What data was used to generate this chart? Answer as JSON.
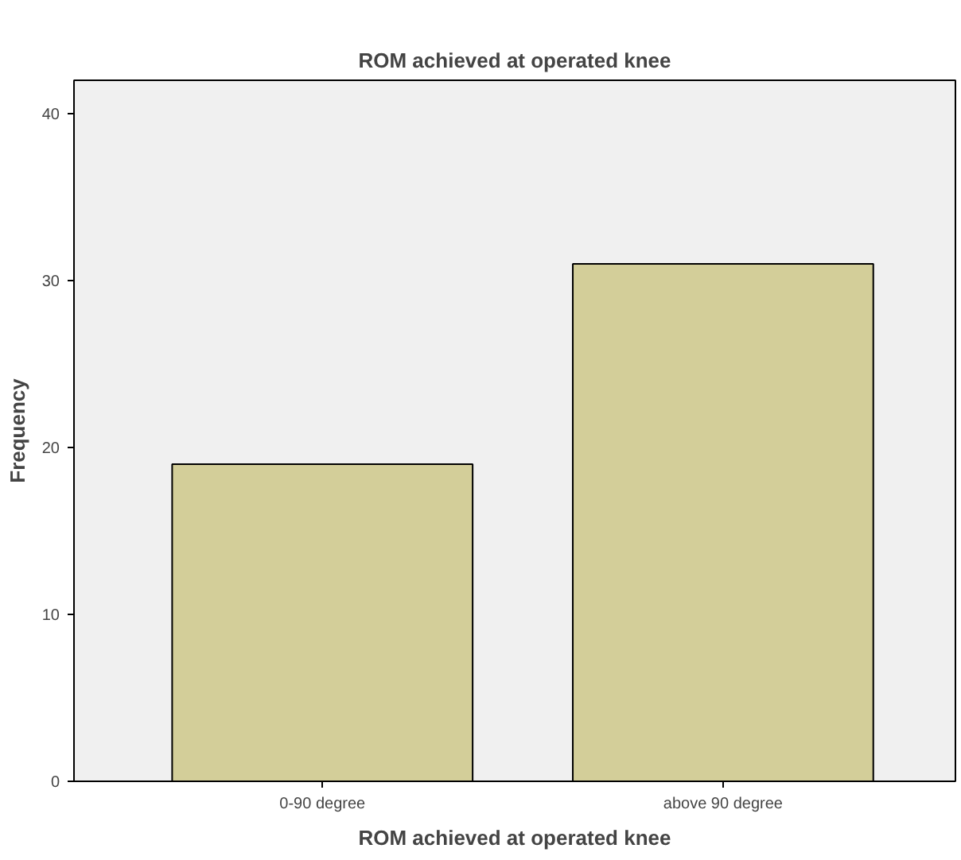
{
  "chart_data": {
    "type": "bar",
    "title": "ROM achieved at operated knee",
    "xlabel": "ROM achieved at operated knee",
    "ylabel": "Frequency",
    "categories": [
      "0-90 degree",
      "above 90 degree"
    ],
    "values": [
      19,
      31
    ],
    "color": "#d3ce99",
    "ylim": [
      0,
      42
    ],
    "yticks": [
      0,
      10,
      20,
      30,
      40
    ],
    "grid": false
  }
}
